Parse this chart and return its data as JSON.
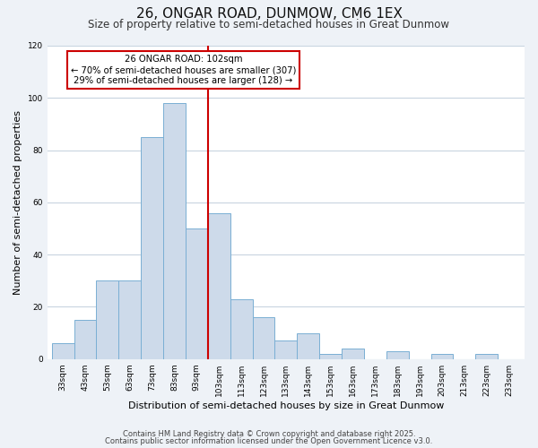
{
  "title": "26, ONGAR ROAD, DUNMOW, CM6 1EX",
  "subtitle": "Size of property relative to semi-detached houses in Great Dunmow",
  "xlabel": "Distribution of semi-detached houses by size in Great Dunmow",
  "ylabel": "Number of semi-detached properties",
  "bar_labels": [
    "33sqm",
    "43sqm",
    "53sqm",
    "63sqm",
    "73sqm",
    "83sqm",
    "93sqm",
    "103sqm",
    "113sqm",
    "123sqm",
    "133sqm",
    "143sqm",
    "153sqm",
    "163sqm",
    "173sqm",
    "183sqm",
    "193sqm",
    "203sqm",
    "213sqm",
    "223sqm",
    "233sqm"
  ],
  "bar_values": [
    6,
    15,
    30,
    30,
    85,
    98,
    50,
    56,
    23,
    16,
    7,
    10,
    2,
    4,
    0,
    3,
    0,
    2,
    0,
    2,
    0
  ],
  "bar_edges": [
    33,
    43,
    53,
    63,
    73,
    83,
    93,
    103,
    113,
    123,
    133,
    143,
    153,
    163,
    173,
    183,
    193,
    203,
    213,
    223,
    233
  ],
  "bar_color": "#cddaea",
  "bar_edgecolor": "#7aafd4",
  "vline_x": 103,
  "vline_color": "#cc0000",
  "ylim": [
    0,
    120
  ],
  "yticks": [
    0,
    20,
    40,
    60,
    80,
    100,
    120
  ],
  "annotation_title": "26 ONGAR ROAD: 102sqm",
  "annotation_line1": "← 70% of semi-detached houses are smaller (307)",
  "annotation_line2": "29% of semi-detached houses are larger (128) →",
  "footer1": "Contains HM Land Registry data © Crown copyright and database right 2025.",
  "footer2": "Contains public sector information licensed under the Open Government Licence v3.0.",
  "background_color": "#eef2f7",
  "plot_background_color": "#ffffff",
  "grid_color": "#c8d4e0",
  "title_fontsize": 11,
  "subtitle_fontsize": 8.5,
  "xlabel_fontsize": 8,
  "ylabel_fontsize": 8,
  "tick_fontsize": 6.5,
  "footer_fontsize": 6
}
